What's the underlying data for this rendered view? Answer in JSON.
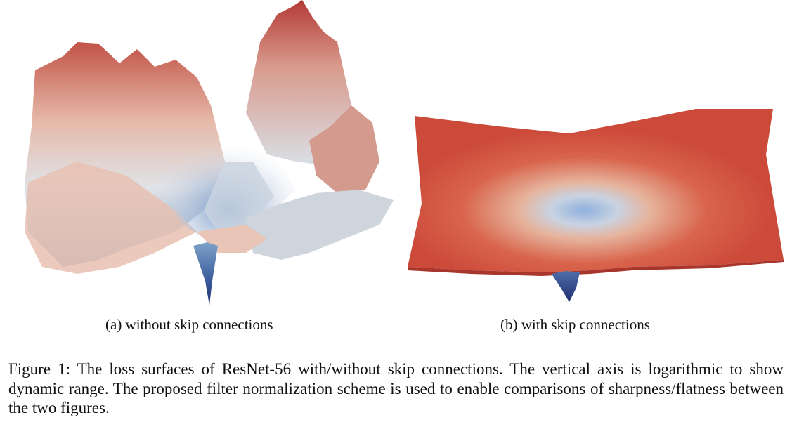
{
  "figure": {
    "panels": [
      {
        "caption": "(a) without skip connections"
      },
      {
        "caption": "(b) with skip connections"
      }
    ],
    "caption_label": "Figure 1:",
    "caption_text": "The loss surfaces of ResNet-56 with/without skip connections. The vertical axis is logarithmic to show dynamic range. The proposed filter normalization scheme is used to enable comparisons of sharpness/flatness between the two figures."
  },
  "colors": {
    "high": "#c8413a",
    "mid": "#e9dcd6",
    "low": "#2d3f86"
  }
}
